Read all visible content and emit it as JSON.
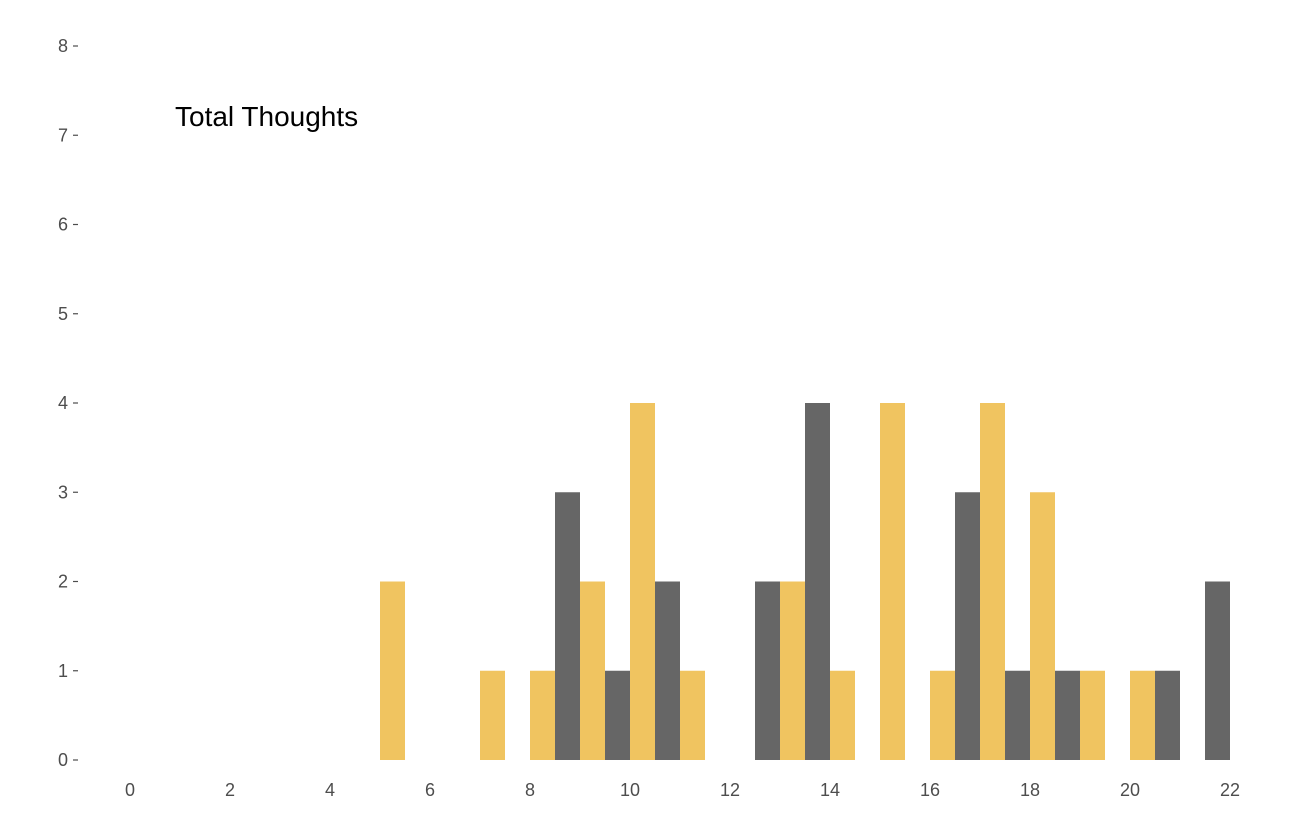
{
  "chart_data": {
    "type": "bar",
    "title": "Total Thoughts",
    "xlabel": "",
    "ylabel": "",
    "xlim": [
      0,
      22
    ],
    "ylim": [
      0,
      8
    ],
    "x_ticks": [
      "0",
      "2",
      "4",
      "6",
      "8",
      "10",
      "12",
      "14",
      "16",
      "18",
      "20",
      "22"
    ],
    "y_ticks": [
      "0",
      "1",
      "2",
      "3",
      "4",
      "5",
      "6",
      "7",
      "8"
    ],
    "grid": false,
    "legend": "none",
    "bin_width": 0.5,
    "series": [
      {
        "color": "#f0c460",
        "bins": [
          {
            "x": 5.25,
            "count": 2
          },
          {
            "x": 7.25,
            "count": 1
          },
          {
            "x": 8.25,
            "count": 1
          },
          {
            "x": 9.25,
            "count": 2
          },
          {
            "x": 10.25,
            "count": 4
          },
          {
            "x": 11.25,
            "count": 1
          },
          {
            "x": 13.25,
            "count": 2
          },
          {
            "x": 14.25,
            "count": 1
          },
          {
            "x": 15.25,
            "count": 4
          },
          {
            "x": 16.25,
            "count": 1
          },
          {
            "x": 17.25,
            "count": 4
          },
          {
            "x": 18.25,
            "count": 3
          },
          {
            "x": 19.25,
            "count": 1
          },
          {
            "x": 20.25,
            "count": 1
          }
        ]
      },
      {
        "color": "#666666",
        "bins": [
          {
            "x": 8.75,
            "count": 3
          },
          {
            "x": 9.75,
            "count": 1
          },
          {
            "x": 10.75,
            "count": 2
          },
          {
            "x": 12.75,
            "count": 2
          },
          {
            "x": 13.75,
            "count": 4
          },
          {
            "x": 16.75,
            "count": 3
          },
          {
            "x": 17.75,
            "count": 1
          },
          {
            "x": 18.75,
            "count": 1
          },
          {
            "x": 20.75,
            "count": 1
          },
          {
            "x": 21.75,
            "count": 2
          }
        ]
      }
    ]
  }
}
